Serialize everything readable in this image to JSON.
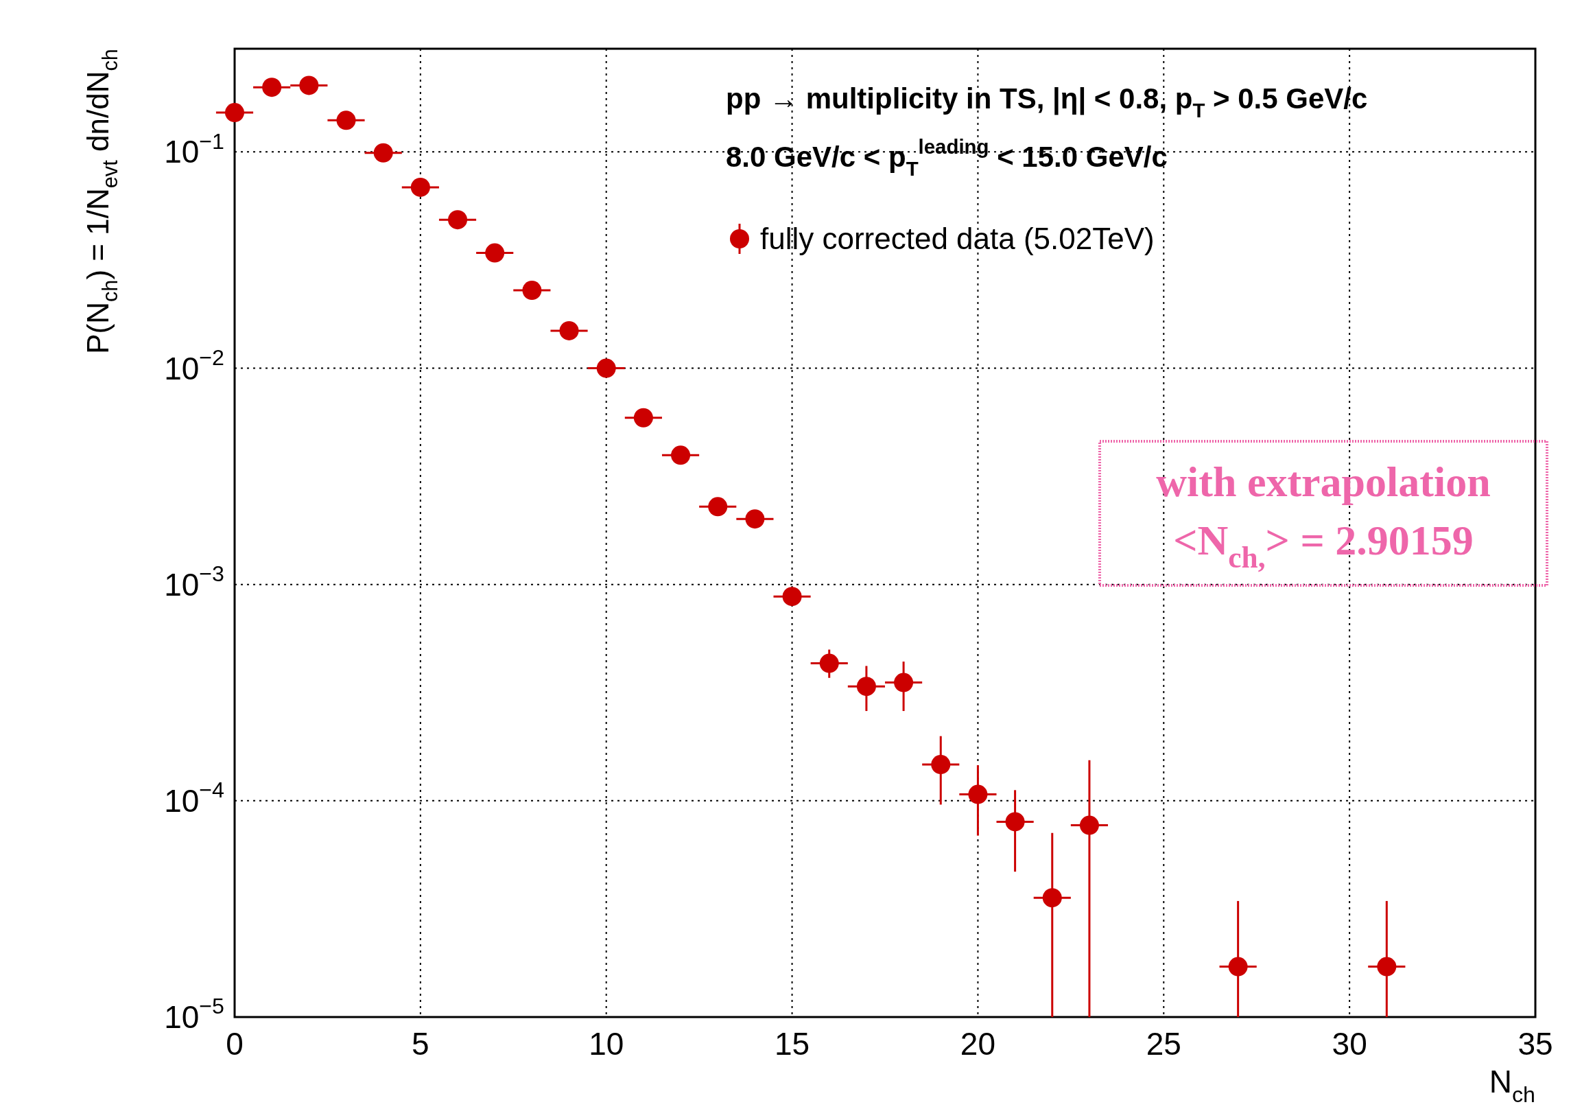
{
  "chart_data": {
    "type": "scatter",
    "title": "pp → multiplicity in TS,   |η| < 0.8,   p$_{T}$ > 0.5 GeV/c",
    "subtitle": "8.0 GeV/c < p$_{T}$$^{leading}$ < 15.0 GeV/c",
    "xlabel": "N$_{ch}$",
    "ylabel": "P(N$_{ch}$) = 1/N$_{evt}$ dn/dN$_{ch}$",
    "log": "y",
    "grid": true,
    "legend": "top right",
    "marker": "circle",
    "xlim": [
      0,
      35
    ],
    "xticks": [
      0,
      5,
      10,
      15,
      20,
      25,
      30,
      35
    ],
    "ylim": [
      1e-05,
      0.3
    ],
    "yticks": [
      {
        "value": 1e-05,
        "label": "10$^{−5}$"
      },
      {
        "value": 0.0001,
        "label": "10$^{−4}$"
      },
      {
        "value": 0.001,
        "label": "10$^{−3}$"
      },
      {
        "value": 0.01,
        "label": "10$^{−2}$"
      },
      {
        "value": 0.1,
        "label": "10$^{−1}$"
      }
    ],
    "annotations": [
      "with extrapolation",
      "<N$_{ch,}$> = 2.90159"
    ],
    "series": [
      {
        "name": "fully corrected data (5.02TeV)",
        "color": "#cc0000",
        "x": [
          0,
          1,
          2,
          3,
          4,
          5,
          6,
          7,
          8,
          9,
          10,
          11,
          12,
          13,
          14,
          15,
          16,
          17,
          18,
          19,
          20,
          21,
          22,
          23,
          27,
          31
        ],
        "values": [
          0.152,
          0.199,
          0.203,
          0.14,
          0.099,
          0.0686,
          0.0486,
          0.0341,
          0.0229,
          0.0149,
          0.01,
          0.0059,
          0.00396,
          0.00229,
          0.00201,
          0.00088,
          0.000432,
          0.000338,
          0.000352,
          0.000147,
          0.000107,
          8e-05,
          3.56e-05,
          7.7e-05,
          1.71e-05,
          1.71e-05
        ],
        "errors": [
          null,
          null,
          null,
          null,
          null,
          null,
          null,
          null,
          null,
          null,
          null,
          null,
          null,
          null,
          null,
          null,
          [
            0.00037,
            0.0005
          ],
          [
            0.00026,
            0.00042
          ],
          [
            0.00026,
            0.00044
          ],
          [
            9.6e-05,
            0.000199
          ],
          [
            6.9e-05,
            0.000146
          ],
          [
            4.7e-05,
            0.000112
          ],
          [
            1e-05,
            7.1e-05
          ],
          [
            1e-05,
            0.000154
          ],
          [
            1e-05,
            3.44e-05
          ],
          [
            1e-05,
            3.44e-05
          ]
        ],
        "xerrors": [
          0.5,
          0.5,
          0.5,
          0.5,
          0.5,
          0.5,
          0.5,
          0.5,
          0.5,
          0.5,
          0.5,
          0.5,
          0.5,
          0.5,
          0.5,
          0.5,
          0.5,
          0.5,
          0.5,
          0.5,
          0.5,
          0.5,
          0.5,
          0.5,
          0.5,
          0.5
        ]
      }
    ]
  }
}
